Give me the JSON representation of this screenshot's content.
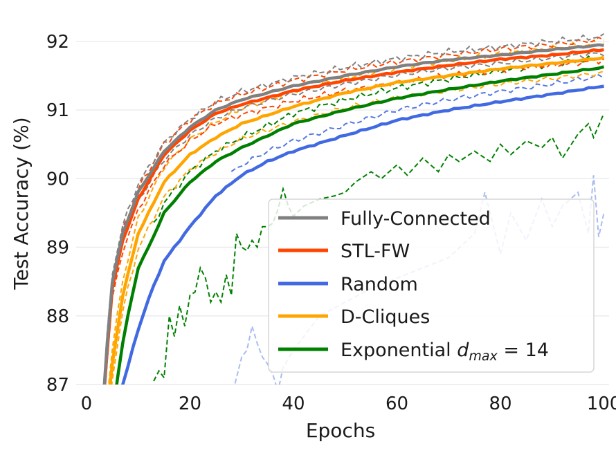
{
  "chart_data": {
    "type": "line",
    "title": "",
    "xlabel": "Epochs",
    "ylabel": "Test Accuracy (%)",
    "xlim": [
      -2,
      101
    ],
    "ylim": [
      87,
      92.3
    ],
    "x_ticks": [
      0,
      20,
      40,
      60,
      80,
      100
    ],
    "x_tick_labels": [
      "0",
      "20",
      "40",
      "60",
      "80",
      "100"
    ],
    "y_ticks": [
      87,
      88,
      89,
      90,
      91,
      92
    ],
    "y_tick_labels": [
      "87",
      "88",
      "89",
      "90",
      "91",
      "92"
    ],
    "grid": "horizontal",
    "legend_position": "lower-right",
    "legend": {
      "fully_connected": "Fully-Connected",
      "stl_fw": "STL-FW",
      "random": "Random",
      "d_cliques": "D-Cliques",
      "exponential_prefix": "Exponential ",
      "exponential_math_d": "d",
      "exponential_math_sub": "max",
      "exponential_math_rest": " = 14"
    },
    "series": [
      {
        "name": "Fully-Connected",
        "color": "#808080",
        "mean": {
          "x": [
            3,
            4,
            5,
            7,
            10,
            15,
            20,
            25,
            30,
            40,
            50,
            60,
            70,
            80,
            90,
            100
          ],
          "y": [
            86.5,
            87.6,
            88.5,
            89.2,
            89.8,
            90.4,
            90.75,
            91.0,
            91.15,
            91.35,
            91.5,
            91.63,
            91.73,
            91.8,
            91.88,
            91.95
          ]
        },
        "band_offset": 0.12
      },
      {
        "name": "STL-FW",
        "color": "#ff4500",
        "mean": {
          "x": [
            3,
            4,
            5,
            7,
            10,
            15,
            20,
            25,
            30,
            40,
            50,
            60,
            70,
            80,
            90,
            100
          ],
          "y": [
            86.5,
            87.5,
            88.4,
            89.1,
            89.7,
            90.35,
            90.7,
            90.95,
            91.08,
            91.28,
            91.43,
            91.55,
            91.65,
            91.74,
            91.8,
            91.88
          ]
        },
        "band_offset": 0.15
      },
      {
        "name": "Random",
        "color": "#4169e1",
        "mean": {
          "x": [
            5,
            7,
            10,
            12,
            15,
            20,
            25,
            30,
            35,
            40,
            50,
            60,
            70,
            80,
            90,
            100
          ],
          "y": [
            86.4,
            87.0,
            87.8,
            88.25,
            88.8,
            89.3,
            89.75,
            90.05,
            90.25,
            90.4,
            90.63,
            90.85,
            91.0,
            91.12,
            91.23,
            91.35
          ]
        },
        "lower": {
          "x": [
            28,
            29,
            30,
            31,
            32,
            33,
            34,
            35,
            36,
            37,
            38,
            40,
            45,
            50,
            55,
            60,
            65,
            70,
            75,
            77,
            80,
            82,
            85,
            88,
            90,
            92,
            95,
            97,
            98,
            99,
            100
          ],
          "y": [
            86.8,
            87.1,
            87.4,
            87.5,
            87.85,
            87.6,
            87.4,
            87.3,
            87.15,
            86.9,
            87.25,
            87.5,
            88.0,
            88.2,
            88.4,
            88.55,
            88.7,
            88.85,
            89.2,
            89.8,
            88.9,
            89.5,
            89.1,
            89.7,
            89.3,
            89.6,
            89.8,
            89.2,
            90.05,
            89.15,
            89.5
          ]
        },
        "upper_offset": 0.15
      },
      {
        "name": "D-Cliques",
        "color": "#ffa500",
        "mean": {
          "x": [
            4,
            5,
            7,
            10,
            15,
            20,
            25,
            30,
            40,
            50,
            60,
            70,
            80,
            90,
            100
          ],
          "y": [
            86.6,
            87.3,
            88.3,
            89.2,
            89.95,
            90.35,
            90.6,
            90.8,
            91.05,
            91.25,
            91.4,
            91.5,
            91.6,
            91.68,
            91.76
          ]
        },
        "band_offset": 0.22
      },
      {
        "name": "Exponential dmax=14",
        "color": "#008000",
        "mean": {
          "x": [
            5,
            6,
            7,
            8,
            10,
            12,
            15,
            20,
            25,
            30,
            40,
            50,
            60,
            70,
            80,
            90,
            100
          ],
          "y": [
            86.5,
            87.1,
            87.6,
            88.0,
            88.7,
            89.0,
            89.5,
            89.95,
            90.25,
            90.45,
            90.8,
            91.0,
            91.17,
            91.3,
            91.42,
            91.52,
            91.62
          ]
        },
        "lower": {
          "x": [
            13,
            14,
            15,
            16,
            17,
            18,
            19,
            20,
            21,
            22,
            23,
            24,
            25,
            26,
            27,
            28,
            29,
            30,
            31,
            32,
            33,
            34,
            35,
            36,
            37,
            38,
            39,
            40,
            42,
            45,
            48,
            50,
            52,
            54,
            55,
            57,
            60,
            62,
            65,
            68,
            70,
            72,
            75,
            78,
            80,
            82,
            85,
            88,
            90,
            92,
            95,
            97,
            98,
            100
          ],
          "y": [
            87.05,
            87.2,
            87.1,
            88.0,
            87.7,
            88.15,
            87.85,
            88.3,
            88.35,
            88.7,
            88.55,
            88.2,
            88.35,
            88.2,
            88.6,
            88.3,
            89.2,
            89.0,
            88.95,
            89.1,
            89.0,
            89.3,
            89.3,
            89.35,
            89.55,
            89.85,
            89.6,
            89.45,
            89.6,
            89.7,
            89.75,
            89.8,
            89.95,
            90.05,
            90.1,
            90.0,
            90.2,
            90.05,
            90.3,
            90.1,
            90.35,
            90.25,
            90.4,
            90.25,
            90.5,
            90.35,
            90.55,
            90.45,
            90.6,
            90.3,
            90.65,
            90.8,
            90.6,
            90.95
          ]
        },
        "upper_offset": 0.15
      }
    ]
  }
}
